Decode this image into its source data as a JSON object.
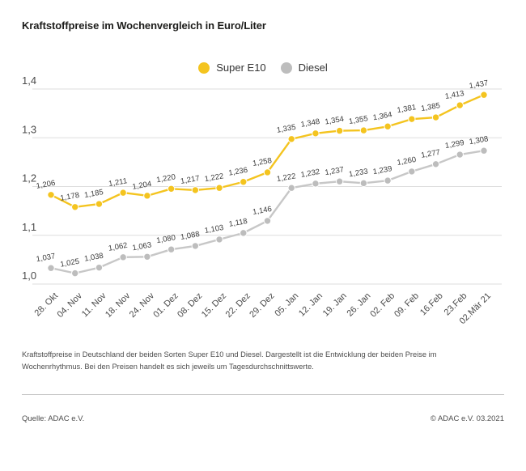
{
  "title": "Kraftstoffpreise im Wochenvergleich in Euro/Liter",
  "legend": [
    {
      "label": "Super E10",
      "color": "#F4C41F"
    },
    {
      "label": "Diesel",
      "color": "#BDBDBD"
    }
  ],
  "chart_data": {
    "type": "line",
    "title": "Kraftstoffpreise im Wochenvergleich in Euro/Liter",
    "xlabel": "",
    "ylabel": "Euro/Liter",
    "x": [
      "28. Okt",
      "04. Nov",
      "11. Nov",
      "18. Nov",
      "24. Nov",
      "01. Dez",
      "08. Dez",
      "15. Dez",
      "22. Dez",
      "29. Dez",
      "05. Jan",
      "12. Jan",
      "19. Jan",
      "26. Jan",
      "02. Feb",
      "09. Feb",
      "16.Feb",
      "23.Feb",
      "02.Mär 21"
    ],
    "series": [
      {
        "name": "Diesel",
        "color": "#BDBDBD",
        "line_color": "#C7C7C7",
        "values": [
          1.037,
          1.025,
          1.038,
          1.062,
          1.063,
          1.08,
          1.088,
          1.103,
          1.118,
          1.146,
          1.222,
          1.232,
          1.237,
          1.233,
          1.239,
          1.26,
          1.277,
          1.299,
          1.308
        ]
      },
      {
        "name": "Super E10",
        "color": "#F4C41F",
        "line_color": "#F4C41F",
        "values": [
          1.206,
          1.178,
          1.185,
          1.211,
          1.204,
          1.22,
          1.217,
          1.222,
          1.236,
          1.258,
          1.335,
          1.348,
          1.354,
          1.355,
          1.364,
          1.381,
          1.385,
          1.413,
          1.437
        ]
      }
    ],
    "yticks": [
      1.4,
      1.3,
      1.2,
      1.1,
      1.0
    ],
    "ylim": [
      1.0,
      1.4
    ],
    "grid": true,
    "legend_position": "top-center",
    "value_labels": true,
    "decimal_separator": ","
  },
  "colors": {
    "grid": "#DDDDDD",
    "axis_text": "#4b4b4b",
    "value_label_text": "#3a3a3a"
  },
  "description": "Kraftstoffpreise in Deutschland der beiden Sorten Super E10 und Diesel. Dargestellt ist die Entwicklung der beiden Preise im Wochenrhythmus. Bei den Preisen handelt es sich jeweils um Tagesdurchschnittswerte.",
  "source": "Quelle: ADAC e.V.",
  "copyright": "© ADAC e.V. 03.2021"
}
